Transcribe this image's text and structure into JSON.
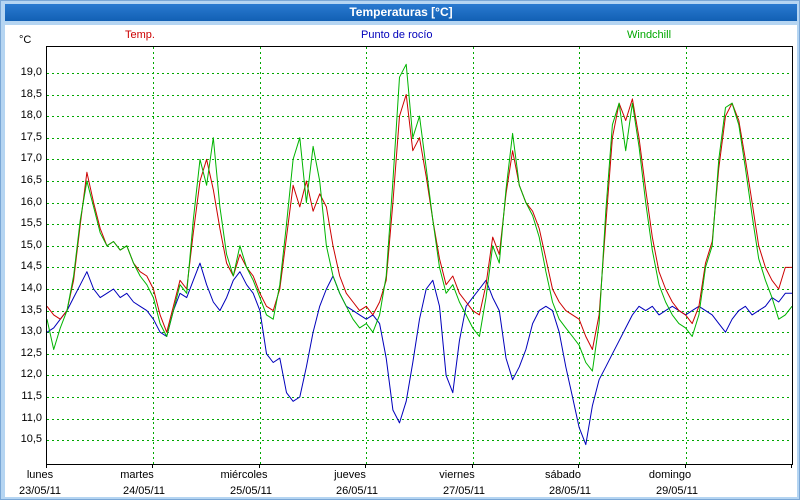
{
  "window": {
    "title": "Temperaturas [°C]"
  },
  "legend": {
    "temp": "Temp.",
    "dew": "Punto de rocío",
    "windchill": "Windchill"
  },
  "colors": {
    "temp": "#cc0000",
    "dew": "#0000bb",
    "windchill": "#00b400",
    "grid": "#00a800",
    "frame": "#b5d5f2",
    "titlebar": "#1667c0",
    "plot_background": "#ffffff"
  },
  "chart_data": {
    "type": "line",
    "title": "Temperaturas [°C]",
    "grid": "dashed-green",
    "legend_position": "top",
    "y_axis": {
      "unit": "°C",
      "min": 9.95,
      "max": 19.6,
      "tick_min": 10.5,
      "tick_max": 19.0,
      "tick_step": 0.5,
      "decimal_separator": ","
    },
    "x_axis": {
      "days": [
        {
          "name": "lunes",
          "date": "23/05/11"
        },
        {
          "name": "martes",
          "date": "24/05/11"
        },
        {
          "name": "miércoles",
          "date": "25/05/11"
        },
        {
          "name": "jueves",
          "date": "26/05/11"
        },
        {
          "name": "viernes",
          "date": "27/05/11"
        },
        {
          "name": "sábado",
          "date": "28/05/11"
        },
        {
          "name": "domingo",
          "date": "29/05/11"
        }
      ],
      "samples_per_day": 16
    },
    "series": [
      {
        "name": "Temp.",
        "color": "#cc0000",
        "values": [
          13.6,
          13.4,
          13.3,
          13.5,
          14.2,
          15.5,
          16.7,
          16.0,
          15.4,
          15.0,
          15.1,
          14.9,
          15.0,
          14.6,
          14.4,
          14.3,
          14.0,
          13.4,
          13.0,
          13.6,
          14.2,
          14.0,
          15.3,
          16.5,
          17.0,
          16.3,
          15.4,
          14.6,
          14.3,
          14.8,
          14.5,
          14.3,
          13.9,
          13.6,
          13.5,
          14.0,
          15.2,
          16.4,
          15.9,
          16.5,
          15.8,
          16.2,
          15.9,
          15.0,
          14.3,
          13.9,
          13.7,
          13.5,
          13.6,
          13.4,
          13.7,
          14.2,
          16.0,
          18.0,
          18.5,
          17.2,
          17.5,
          16.6,
          15.6,
          14.7,
          14.1,
          14.3,
          13.9,
          13.7,
          13.5,
          13.4,
          14.1,
          15.2,
          14.8,
          16.2,
          17.2,
          16.4,
          16.0,
          15.8,
          15.4,
          14.7,
          14.0,
          13.7,
          13.5,
          13.4,
          13.3,
          12.9,
          12.6,
          13.4,
          15.5,
          17.5,
          18.3,
          17.9,
          18.4,
          17.5,
          16.3,
          15.2,
          14.4,
          14.0,
          13.7,
          13.5,
          13.4,
          13.2,
          13.6,
          14.6,
          15.1,
          16.8,
          18.0,
          18.3,
          17.9,
          17.0,
          16.0,
          15.0,
          14.5,
          14.2,
          14.0,
          14.5,
          14.5
        ]
      },
      {
        "name": "Punto de rocío",
        "color": "#0000bb",
        "values": [
          13.0,
          13.1,
          13.3,
          13.5,
          13.8,
          14.1,
          14.4,
          14.0,
          13.8,
          13.9,
          14.0,
          13.8,
          13.9,
          13.7,
          13.6,
          13.5,
          13.3,
          13.0,
          12.9,
          13.5,
          13.9,
          13.8,
          14.2,
          14.6,
          14.1,
          13.7,
          13.5,
          13.8,
          14.2,
          14.4,
          14.1,
          13.9,
          13.5,
          12.5,
          12.3,
          12.4,
          11.6,
          11.4,
          11.5,
          12.2,
          13.0,
          13.6,
          14.0,
          14.3,
          13.9,
          13.6,
          13.5,
          13.4,
          13.3,
          13.4,
          13.2,
          12.4,
          11.2,
          10.9,
          11.4,
          12.3,
          13.3,
          14.0,
          14.2,
          13.6,
          12.0,
          11.6,
          12.8,
          13.6,
          13.8,
          14.0,
          14.2,
          13.8,
          13.5,
          12.4,
          11.9,
          12.2,
          12.6,
          13.2,
          13.5,
          13.6,
          13.5,
          13.0,
          12.2,
          11.5,
          10.8,
          10.4,
          11.3,
          11.9,
          12.2,
          12.5,
          12.8,
          13.1,
          13.4,
          13.6,
          13.5,
          13.6,
          13.4,
          13.5,
          13.6,
          13.5,
          13.4,
          13.5,
          13.6,
          13.5,
          13.4,
          13.2,
          13.0,
          13.3,
          13.5,
          13.6,
          13.4,
          13.5,
          13.6,
          13.8,
          13.7,
          13.9,
          13.9
        ]
      },
      {
        "name": "Windchill",
        "color": "#00b400",
        "values": [
          13.3,
          12.6,
          13.1,
          13.5,
          14.3,
          15.6,
          16.5,
          15.9,
          15.3,
          15.0,
          15.1,
          14.9,
          15.0,
          14.6,
          14.3,
          14.1,
          13.8,
          13.2,
          12.9,
          13.5,
          14.1,
          13.9,
          15.6,
          17.0,
          16.4,
          17.5,
          15.9,
          14.8,
          14.3,
          15.0,
          14.5,
          14.2,
          13.8,
          13.4,
          13.3,
          14.1,
          15.5,
          17.0,
          17.5,
          16.0,
          17.3,
          16.5,
          15.0,
          14.3,
          13.9,
          13.6,
          13.3,
          13.1,
          13.2,
          13.0,
          13.4,
          14.3,
          16.5,
          18.9,
          19.2,
          17.5,
          18.0,
          16.8,
          15.6,
          14.5,
          13.9,
          14.1,
          13.7,
          13.4,
          13.1,
          12.9,
          13.8,
          15.0,
          14.6,
          16.3,
          17.6,
          16.4,
          16.0,
          15.7,
          15.2,
          14.4,
          13.7,
          13.3,
          13.1,
          12.9,
          12.7,
          12.3,
          12.1,
          13.2,
          15.8,
          17.8,
          18.3,
          17.2,
          18.3,
          17.3,
          16.0,
          14.9,
          14.1,
          13.7,
          13.4,
          13.2,
          13.1,
          12.9,
          13.4,
          14.5,
          15.0,
          17.0,
          18.2,
          18.3,
          17.8,
          16.8,
          15.7,
          14.7,
          14.2,
          13.8,
          13.3,
          13.4,
          13.6
        ]
      }
    ]
  }
}
